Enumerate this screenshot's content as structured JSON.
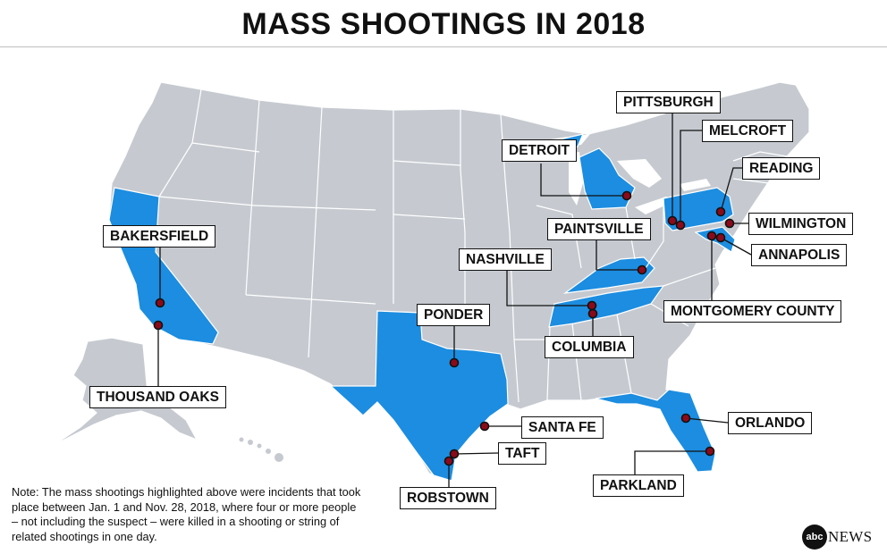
{
  "title": "MASS SHOOTINGS IN 2018",
  "colors": {
    "highlight_state": "#1c8de0",
    "other_state": "#c6cad0",
    "state_border": "#ffffff",
    "marker": "#8b0a1a",
    "marker_outline": "#111111"
  },
  "highlighted_states": [
    "California",
    "Texas",
    "Michigan",
    "Pennsylvania",
    "Kentucky",
    "Tennessee",
    "Maryland",
    "Florida"
  ],
  "locations": [
    {
      "id": "pittsburgh",
      "name": "PITTSBURGH",
      "state": "Pennsylvania"
    },
    {
      "id": "melcroft",
      "name": "MELCROFT",
      "state": "Pennsylvania"
    },
    {
      "id": "detroit",
      "name": "DETROIT",
      "state": "Michigan"
    },
    {
      "id": "reading",
      "name": "READING",
      "state": "Pennsylvania"
    },
    {
      "id": "bakersfield",
      "name": "BAKERSFIELD",
      "state": "California"
    },
    {
      "id": "paintsville",
      "name": "PAINTSVILLE",
      "state": "Kentucky"
    },
    {
      "id": "wilmington",
      "name": "WILMINGTON",
      "state": "Delaware"
    },
    {
      "id": "nashville",
      "name": "NASHVILLE",
      "state": "Tennessee"
    },
    {
      "id": "annapolis",
      "name": "ANNAPOLIS",
      "state": "Maryland"
    },
    {
      "id": "ponder",
      "name": "PONDER",
      "state": "Texas"
    },
    {
      "id": "montgomery",
      "name": "MONTGOMERY COUNTY",
      "state": "Maryland"
    },
    {
      "id": "columbia",
      "name": "COLUMBIA",
      "state": "Tennessee"
    },
    {
      "id": "thousand_oaks",
      "name": "THOUSAND OAKS",
      "state": "California"
    },
    {
      "id": "santa_fe",
      "name": "SANTA FE",
      "state": "Texas"
    },
    {
      "id": "orlando",
      "name": "ORLANDO",
      "state": "Florida"
    },
    {
      "id": "taft",
      "name": "TAFT",
      "state": "Texas"
    },
    {
      "id": "parkland",
      "name": "PARKLAND",
      "state": "Florida"
    },
    {
      "id": "robstown",
      "name": "ROBSTOWN",
      "state": "Texas"
    }
  ],
  "note": "Note: The mass shootings highlighted above were incidents that took place between Jan. 1 and Nov. 28, 2018,  where four or more people – not including the suspect – were killed in a shooting or string of related shootings in one day.",
  "logo": {
    "mark": "abc",
    "text": "NEWS"
  }
}
